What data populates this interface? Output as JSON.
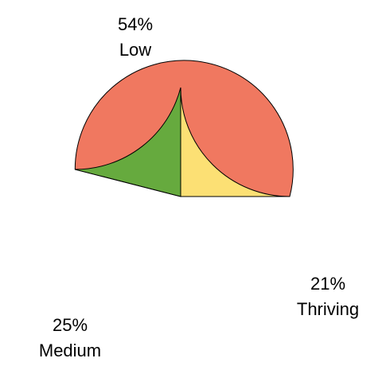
{
  "chart_data": {
    "type": "pie",
    "title": "",
    "slices": [
      {
        "label": "Low",
        "value": 54,
        "percent_label": "54%",
        "color": "#F07860"
      },
      {
        "label": "Thriving",
        "value": 21,
        "percent_label": "21%",
        "color": "#66AA3E"
      },
      {
        "label": "Medium",
        "value": 25,
        "percent_label": "25%",
        "color": "#FCE074"
      }
    ],
    "start_angle_deg": 0,
    "direction": "counterclockwise",
    "slice_border_color": "#000000",
    "legend": "none"
  }
}
